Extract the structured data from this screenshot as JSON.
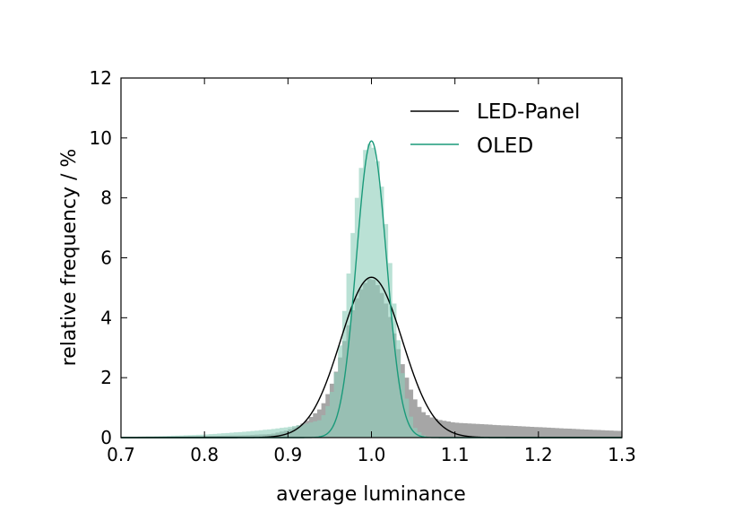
{
  "chart_data": {
    "type": "area",
    "title": "",
    "xlabel": "average luminance",
    "ylabel": "relative frequency  / %",
    "xlim": [
      0.7,
      1.3
    ],
    "ylim": [
      0,
      12
    ],
    "x_ticks": [
      "0.7",
      "0.8",
      "0.9",
      "1.0",
      "1.1",
      "1.2",
      "1.3"
    ],
    "y_ticks": [
      "0",
      "2",
      "4",
      "6",
      "8",
      "10",
      "12"
    ],
    "x_tick_values": [
      0.7,
      0.8,
      0.9,
      1.0,
      1.1,
      1.2,
      1.3
    ],
    "y_tick_values": [
      0,
      2,
      4,
      6,
      8,
      10,
      12
    ],
    "grid": false,
    "legend": "top-right",
    "series": [
      {
        "name": "LED-Panel",
        "kind": "gaussian fit line",
        "color": "#000000",
        "peak_x": 1.0,
        "peak_y": 5.35,
        "sigma": 0.037
      },
      {
        "name": "OLED",
        "kind": "gaussian fit line",
        "color": "#1a9a7a",
        "peak_x": 1.0,
        "peak_y": 9.9,
        "sigma": 0.018
      }
    ],
    "histograms": [
      {
        "of": "LED-Panel",
        "color": "#a6a6a6",
        "x": [
          0.7,
          0.75,
          0.8,
          0.85,
          0.88,
          0.9,
          0.92,
          0.94,
          0.95,
          0.96,
          0.97,
          0.98,
          0.99,
          1.0,
          1.01,
          1.02,
          1.03,
          1.04,
          1.05,
          1.06,
          1.07,
          1.08,
          1.09,
          1.1,
          1.15,
          1.2,
          1.25,
          1.3
        ],
        "y": [
          0.02,
          0.03,
          0.05,
          0.08,
          0.12,
          0.25,
          0.5,
          1.0,
          1.6,
          2.4,
          3.5,
          4.5,
          5.1,
          5.35,
          5.0,
          4.3,
          3.2,
          2.2,
          1.4,
          0.9,
          0.7,
          0.6,
          0.55,
          0.5,
          0.42,
          0.35,
          0.28,
          0.22
        ]
      },
      {
        "of": "OLED",
        "color": "#8fcfbb",
        "x": [
          0.7,
          0.75,
          0.8,
          0.85,
          0.88,
          0.9,
          0.92,
          0.94,
          0.95,
          0.96,
          0.97,
          0.98,
          0.99,
          1.0,
          1.01,
          1.02,
          1.03,
          1.04,
          1.05,
          1.06,
          1.07
        ],
        "y": [
          0.02,
          0.05,
          0.1,
          0.2,
          0.28,
          0.35,
          0.45,
          0.6,
          1.2,
          2.5,
          4.8,
          7.5,
          9.5,
          9.9,
          9.0,
          6.5,
          3.8,
          1.6,
          0.4,
          0.1,
          0.0
        ]
      }
    ]
  }
}
